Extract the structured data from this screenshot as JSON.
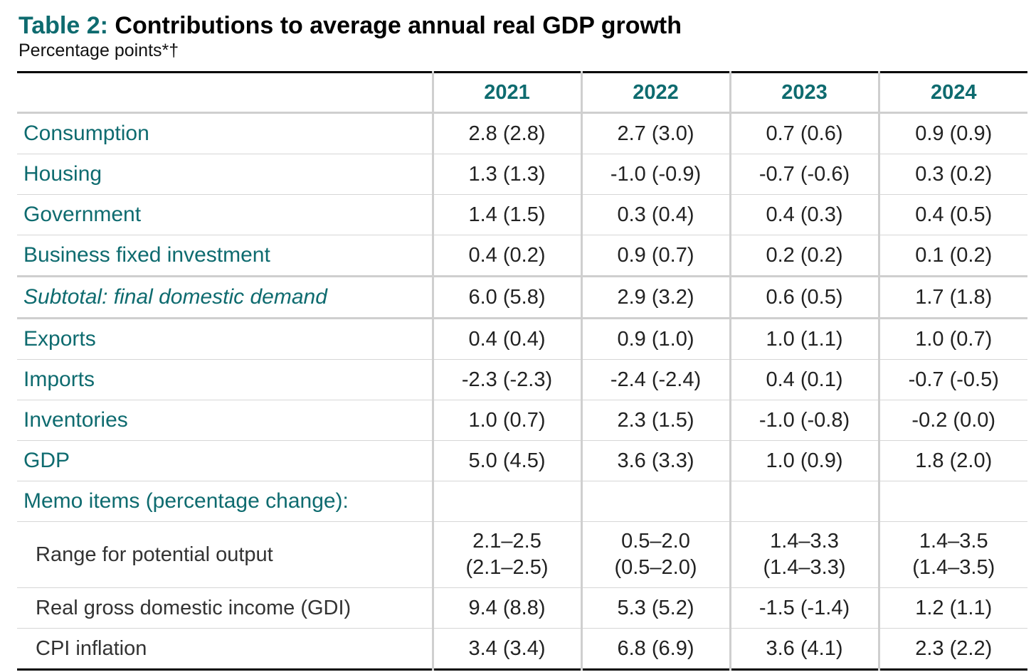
{
  "title": {
    "prefix": "Table 2:",
    "text": "Contributions to average annual real GDP growth"
  },
  "subtitle": "Percentage points*†",
  "columns": [
    "2021",
    "2022",
    "2023",
    "2024"
  ],
  "rows": [
    {
      "label": "Consumption",
      "values": [
        "2.8 (2.8)",
        "2.7 (3.0)",
        "0.7 (0.6)",
        "0.9 (0.9)"
      ]
    },
    {
      "label": "Housing",
      "values": [
        "1.3 (1.3)",
        "-1.0 (-0.9)",
        "-0.7 (-0.6)",
        "0.3 (0.2)"
      ]
    },
    {
      "label": "Government",
      "values": [
        "1.4 (1.5)",
        "0.3 (0.4)",
        "0.4 (0.3)",
        "0.4 (0.5)"
      ]
    },
    {
      "label": "Business fixed investment",
      "values": [
        "0.4 (0.2)",
        "0.9 (0.7)",
        "0.2 (0.2)",
        "0.1 (0.2)"
      ]
    },
    {
      "label": "Subtotal: final domestic demand",
      "values": [
        "6.0 (5.8)",
        "2.9 (3.2)",
        "0.6 (0.5)",
        "1.7 (1.8)"
      ]
    },
    {
      "label": "Exports",
      "values": [
        "0.4 (0.4)",
        "0.9 (1.0)",
        "1.0 (1.1)",
        "1.0 (0.7)"
      ]
    },
    {
      "label": "Imports",
      "values": [
        "-2.3 (-2.3)",
        "-2.4 (-2.4)",
        "0.4 (0.1)",
        "-0.7 (-0.5)"
      ]
    },
    {
      "label": "Inventories",
      "values": [
        "1.0 (0.7)",
        "2.3 (1.5)",
        "-1.0 (-0.8)",
        "-0.2 (0.0)"
      ]
    },
    {
      "label": "GDP",
      "values": [
        "5.0 (4.5)",
        "3.6 (3.3)",
        "1.0 (0.9)",
        "1.8 (2.0)"
      ]
    }
  ],
  "memo": {
    "heading": "Memo items (percentage change):",
    "potential_output": {
      "label": "Range for potential output",
      "values": [
        [
          "2.1–2.5",
          "(2.1–2.5)"
        ],
        [
          "0.5–2.0",
          "(0.5–2.0)"
        ],
        [
          "1.4–3.3",
          "(1.4–3.3)"
        ],
        [
          "1.4–3.5",
          "(1.4–3.5)"
        ]
      ]
    },
    "rows": [
      {
        "label": "Real gross domestic income (GDI)",
        "values": [
          "9.4 (8.8)",
          "5.3 (5.2)",
          "-1.5 (-1.4)",
          "1.2 (1.1)"
        ]
      },
      {
        "label": "CPI inflation",
        "values": [
          "3.4 (3.4)",
          "6.8 (6.9)",
          "3.6 (4.1)",
          "2.3 (2.2)"
        ]
      }
    ]
  },
  "colors": {
    "accent": "#0e6b6f",
    "rule": "#000000",
    "divider": "#cfcfcf"
  }
}
